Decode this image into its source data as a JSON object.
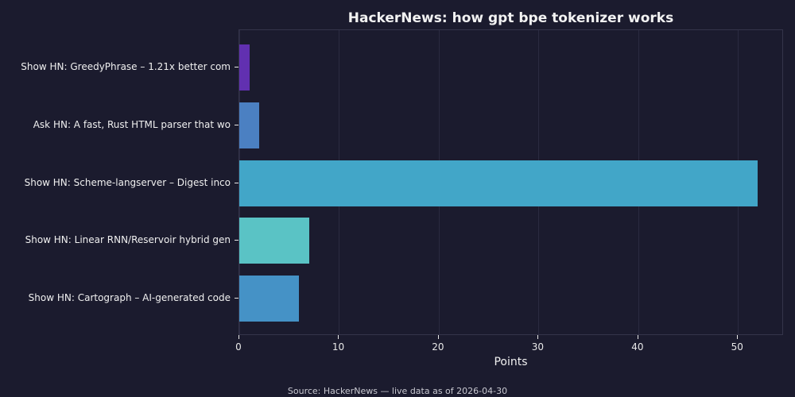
{
  "chart_data": {
    "type": "bar",
    "orientation": "horizontal",
    "title": "HackerNews: how gpt bpe tokenizer works",
    "xlabel": "Points",
    "ylabel": "",
    "xlim": [
      0,
      54.6
    ],
    "xticks": [
      0,
      10,
      20,
      30,
      40,
      50
    ],
    "grid": true,
    "categories": [
      "Show HN: GreedyPhrase – 1.21x better com",
      "Ask HN: A fast, Rust HTML parser that wo",
      "Show HN: Scheme-langserver – Digest inco",
      "Show HN: Linear RNN/Reservoir hybrid gen",
      "Show HN: Cartograph – AI-generated code "
    ],
    "values": [
      1,
      2,
      52,
      7,
      6
    ],
    "colors": [
      "#6130b0",
      "#4b80c2",
      "#42a6c8",
      "#5ac3c5",
      "#4592c6"
    ],
    "source": "Source: HackerNews — live data as of 2026-04-30"
  }
}
